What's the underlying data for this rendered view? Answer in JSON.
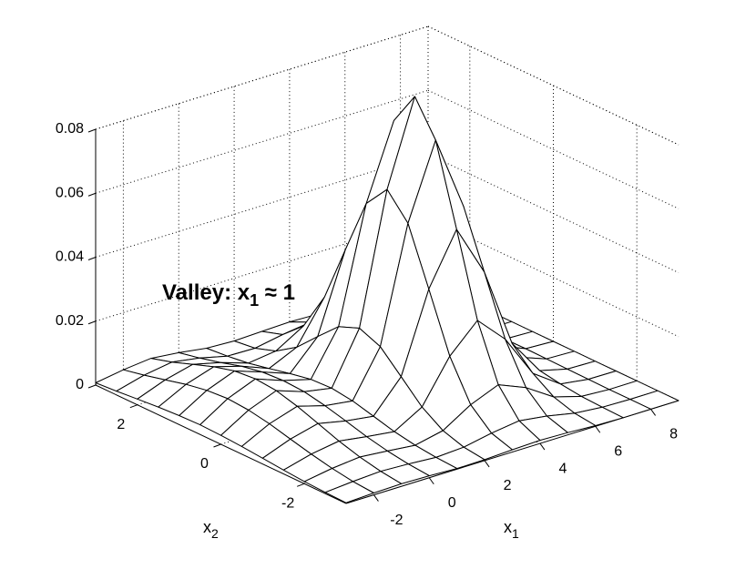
{
  "chart_data": {
    "type": "surface",
    "color": "#000000",
    "fill": "#ffffff",
    "grid": true,
    "annotation": [
      "Valley: x",
      "1",
      " ≈ 1"
    ],
    "xlabel": [
      "x",
      "1"
    ],
    "ylabel": [
      "x",
      "2"
    ],
    "x": [
      -3,
      -2,
      -1,
      0,
      1,
      2,
      3,
      4,
      5,
      6,
      7,
      8,
      9
    ],
    "y": [
      -3,
      -2.5,
      -2,
      -1.5,
      -1,
      -0.5,
      0,
      0.5,
      1,
      1.5,
      2,
      2.5,
      3
    ],
    "z": [
      [
        0.0002,
        0.0006,
        0.0008,
        0.0006,
        0.0002,
        0.0003,
        0.0007,
        0.001,
        0.0007,
        0.0002,
        0,
        0,
        0
      ],
      [
        0.0004,
        0.0011,
        0.0016,
        0.0012,
        0.0006,
        0.0011,
        0.0028,
        0.004,
        0.0028,
        0.001,
        0.0002,
        0,
        0
      ],
      [
        0.0007,
        0.0021,
        0.003,
        0.0022,
        0.0013,
        0.0032,
        0.0086,
        0.0122,
        0.0086,
        0.003,
        0.0005,
        0,
        0
      ],
      [
        0.0012,
        0.0035,
        0.0049,
        0.0036,
        0.0025,
        0.0075,
        0.0207,
        0.0292,
        0.0207,
        0.0073,
        0.0013,
        0.0001,
        0
      ],
      [
        0.0018,
        0.0051,
        0.0073,
        0.0054,
        0.0042,
        0.0139,
        0.0386,
        0.0546,
        0.0386,
        0.0136,
        0.0024,
        0.0002,
        0
      ],
      [
        0.0024,
        0.0068,
        0.0096,
        0.0071,
        0.0059,
        0.0202,
        0.0561,
        0.0794,
        0.0561,
        0.0198,
        0.0035,
        0.0003,
        0
      ],
      [
        0.0028,
        0.008,
        0.0114,
        0.0084,
        0.0068,
        0.0229,
        0.0636,
        0.09,
        0.0636,
        0.0224,
        0.004,
        0.0004,
        0
      ],
      [
        0.003,
        0.0085,
        0.012,
        0.0088,
        0.0065,
        0.0203,
        0.0561,
        0.0794,
        0.0561,
        0.0198,
        0.0035,
        0.0003,
        0
      ],
      [
        0.0028,
        0.008,
        0.0114,
        0.0084,
        0.0052,
        0.0141,
        0.0386,
        0.0546,
        0.0386,
        0.0136,
        0.0024,
        0.0002,
        0
      ],
      [
        0.0024,
        0.0068,
        0.0096,
        0.0071,
        0.0037,
        0.0077,
        0.0207,
        0.0292,
        0.0207,
        0.0073,
        0.0013,
        0.0001,
        0
      ],
      [
        0.0018,
        0.0051,
        0.0073,
        0.0052,
        0.0023,
        0.0034,
        0.0086,
        0.0122,
        0.0086,
        0.003,
        0.0005,
        0,
        0
      ],
      [
        0.0012,
        0.0035,
        0.0049,
        0.0035,
        0.0014,
        0.0012,
        0.0028,
        0.004,
        0.0028,
        0.001,
        0.0002,
        0,
        0
      ],
      [
        0.0007,
        0.0021,
        0.003,
        0.0021,
        0.0008,
        0.0004,
        0.0007,
        0.001,
        0.0007,
        0.0002,
        0,
        0,
        0
      ]
    ],
    "xlim": [
      -3,
      9
    ],
    "ylim": [
      -3,
      3
    ],
    "zlim": [
      0,
      0.08
    ],
    "xticks": [
      -2,
      0,
      2,
      4,
      6,
      8
    ],
    "yticks": [
      -2,
      0,
      2
    ],
    "zticks": [
      0,
      0.02,
      0.04,
      0.06,
      0.08
    ]
  }
}
